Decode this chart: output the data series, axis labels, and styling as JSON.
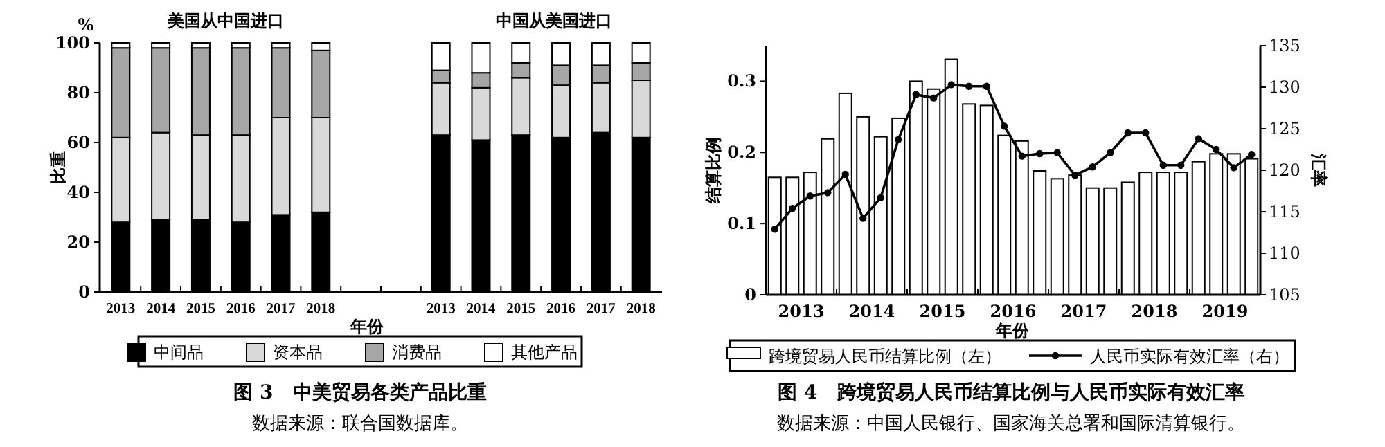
{
  "chart_data": [
    {
      "type": "bar",
      "stacked": true,
      "title": "图 3　中美贸易各类产品比重",
      "xlabel": "年份",
      "ylabel": "比重",
      "legend": "bottom",
      "annotations": [
        "%",
        "美国从中国进口",
        "中国从美国进口",
        "数据来源：联合国数据库。"
      ],
      "categories": [
        "2013",
        "2014",
        "2015",
        "2016",
        "2017",
        "2018",
        null,
        null,
        "2013",
        "2014",
        "2015",
        "2016",
        "2017",
        "2018"
      ],
      "ylim": [
        0,
        100
      ],
      "yticks": [
        0,
        20,
        40,
        60,
        80,
        100
      ],
      "series": [
        {
          "name": "中间品",
          "color": "#000000",
          "values": [
            28,
            29,
            29,
            28,
            31,
            32,
            null,
            null,
            63,
            61,
            63,
            62,
            64,
            62
          ]
        },
        {
          "name": "资本品",
          "color": "#d9d9d9",
          "values": [
            34,
            35,
            34,
            35,
            39,
            38,
            null,
            null,
            21,
            21,
            23,
            21,
            20,
            23
          ]
        },
        {
          "name": "消费品",
          "color": "#a6a6a6",
          "values": [
            36,
            34,
            35,
            35,
            28,
            27,
            null,
            null,
            5,
            6,
            6,
            8,
            7,
            7
          ]
        },
        {
          "name": "其他产品",
          "color": "#ffffff",
          "values": [
            2,
            2,
            2,
            2,
            2,
            3,
            null,
            null,
            11,
            12,
            8,
            9,
            9,
            8
          ]
        }
      ]
    },
    {
      "type": "bar",
      "title": "图 4　跨境贸易人民币结算比例与人民币实际有效汇率",
      "xlabel": "年份",
      "ylabel": "结算比例",
      "y2label": "汇率",
      "legend": "bottom",
      "annotations": [
        "数据来源：中国人民银行、国家海关总署和国际清算银行。"
      ],
      "x": [
        2013.125,
        2013.375,
        2013.625,
        2013.875,
        2014.125,
        2014.375,
        2014.625,
        2014.875,
        2015.125,
        2015.375,
        2015.625,
        2015.875,
        2016.125,
        2016.375,
        2016.625,
        2016.875,
        2017.125,
        2017.375,
        2017.625,
        2017.875,
        2018.125,
        2018.375,
        2018.625,
        2018.875,
        2019.125,
        2019.375,
        2019.625,
        2019.875
      ],
      "xlim": [
        2013,
        2020
      ],
      "xticks": [
        {
          "value": 2013.5,
          "label": "2013"
        },
        {
          "value": 2014,
          "label": null
        },
        {
          "value": 2014.5,
          "label": "2014"
        },
        {
          "value": 2015,
          "label": null
        },
        {
          "value": 2015.5,
          "label": "2015"
        },
        {
          "value": 2016,
          "label": null
        },
        {
          "value": 2016.5,
          "label": "2016"
        },
        {
          "value": 2017,
          "label": null
        },
        {
          "value": 2017.5,
          "label": "2017"
        },
        {
          "value": 2018,
          "label": null
        },
        {
          "value": 2018.5,
          "label": "2018"
        },
        {
          "value": 2019,
          "label": null
        },
        {
          "value": 2019.5,
          "label": "2019"
        }
      ],
      "ylim": [
        0,
        0.35
      ],
      "yticks": [
        0,
        0.1,
        0.2,
        0.3
      ],
      "y2lim": [
        105,
        135
      ],
      "y2ticks": [
        105,
        110,
        115,
        120,
        125,
        130,
        135
      ],
      "series": [
        {
          "name": "跨境贸易人民币结算比例（左）",
          "color": "#ffffff",
          "values": [
            0.165,
            0.165,
            0.172,
            0.219,
            0.283,
            0.25,
            0.222,
            0.248,
            0.3,
            0.289,
            0.331,
            0.268,
            0.266,
            0.224,
            0.216,
            0.174,
            0.163,
            0.168,
            0.15,
            0.15,
            0.158,
            0.172,
            0.172,
            0.172,
            0.187,
            0.198,
            0.198,
            0.191
          ]
        },
        {
          "name": "人民币实际有效汇率（右）",
          "type": "line",
          "axis": "y2",
          "marker": "circle",
          "color": "#000000",
          "values": [
            112.9,
            115.4,
            116.9,
            117.3,
            119.5,
            114.2,
            116.7,
            123.7,
            129.1,
            128.7,
            130.3,
            130.1,
            130.1,
            125.3,
            121.7,
            122.0,
            122.1,
            119.4,
            120.4,
            122.1,
            124.5,
            124.5,
            120.6,
            120.6,
            123.8,
            122.5,
            120.3,
            121.9
          ]
        }
      ]
    }
  ]
}
